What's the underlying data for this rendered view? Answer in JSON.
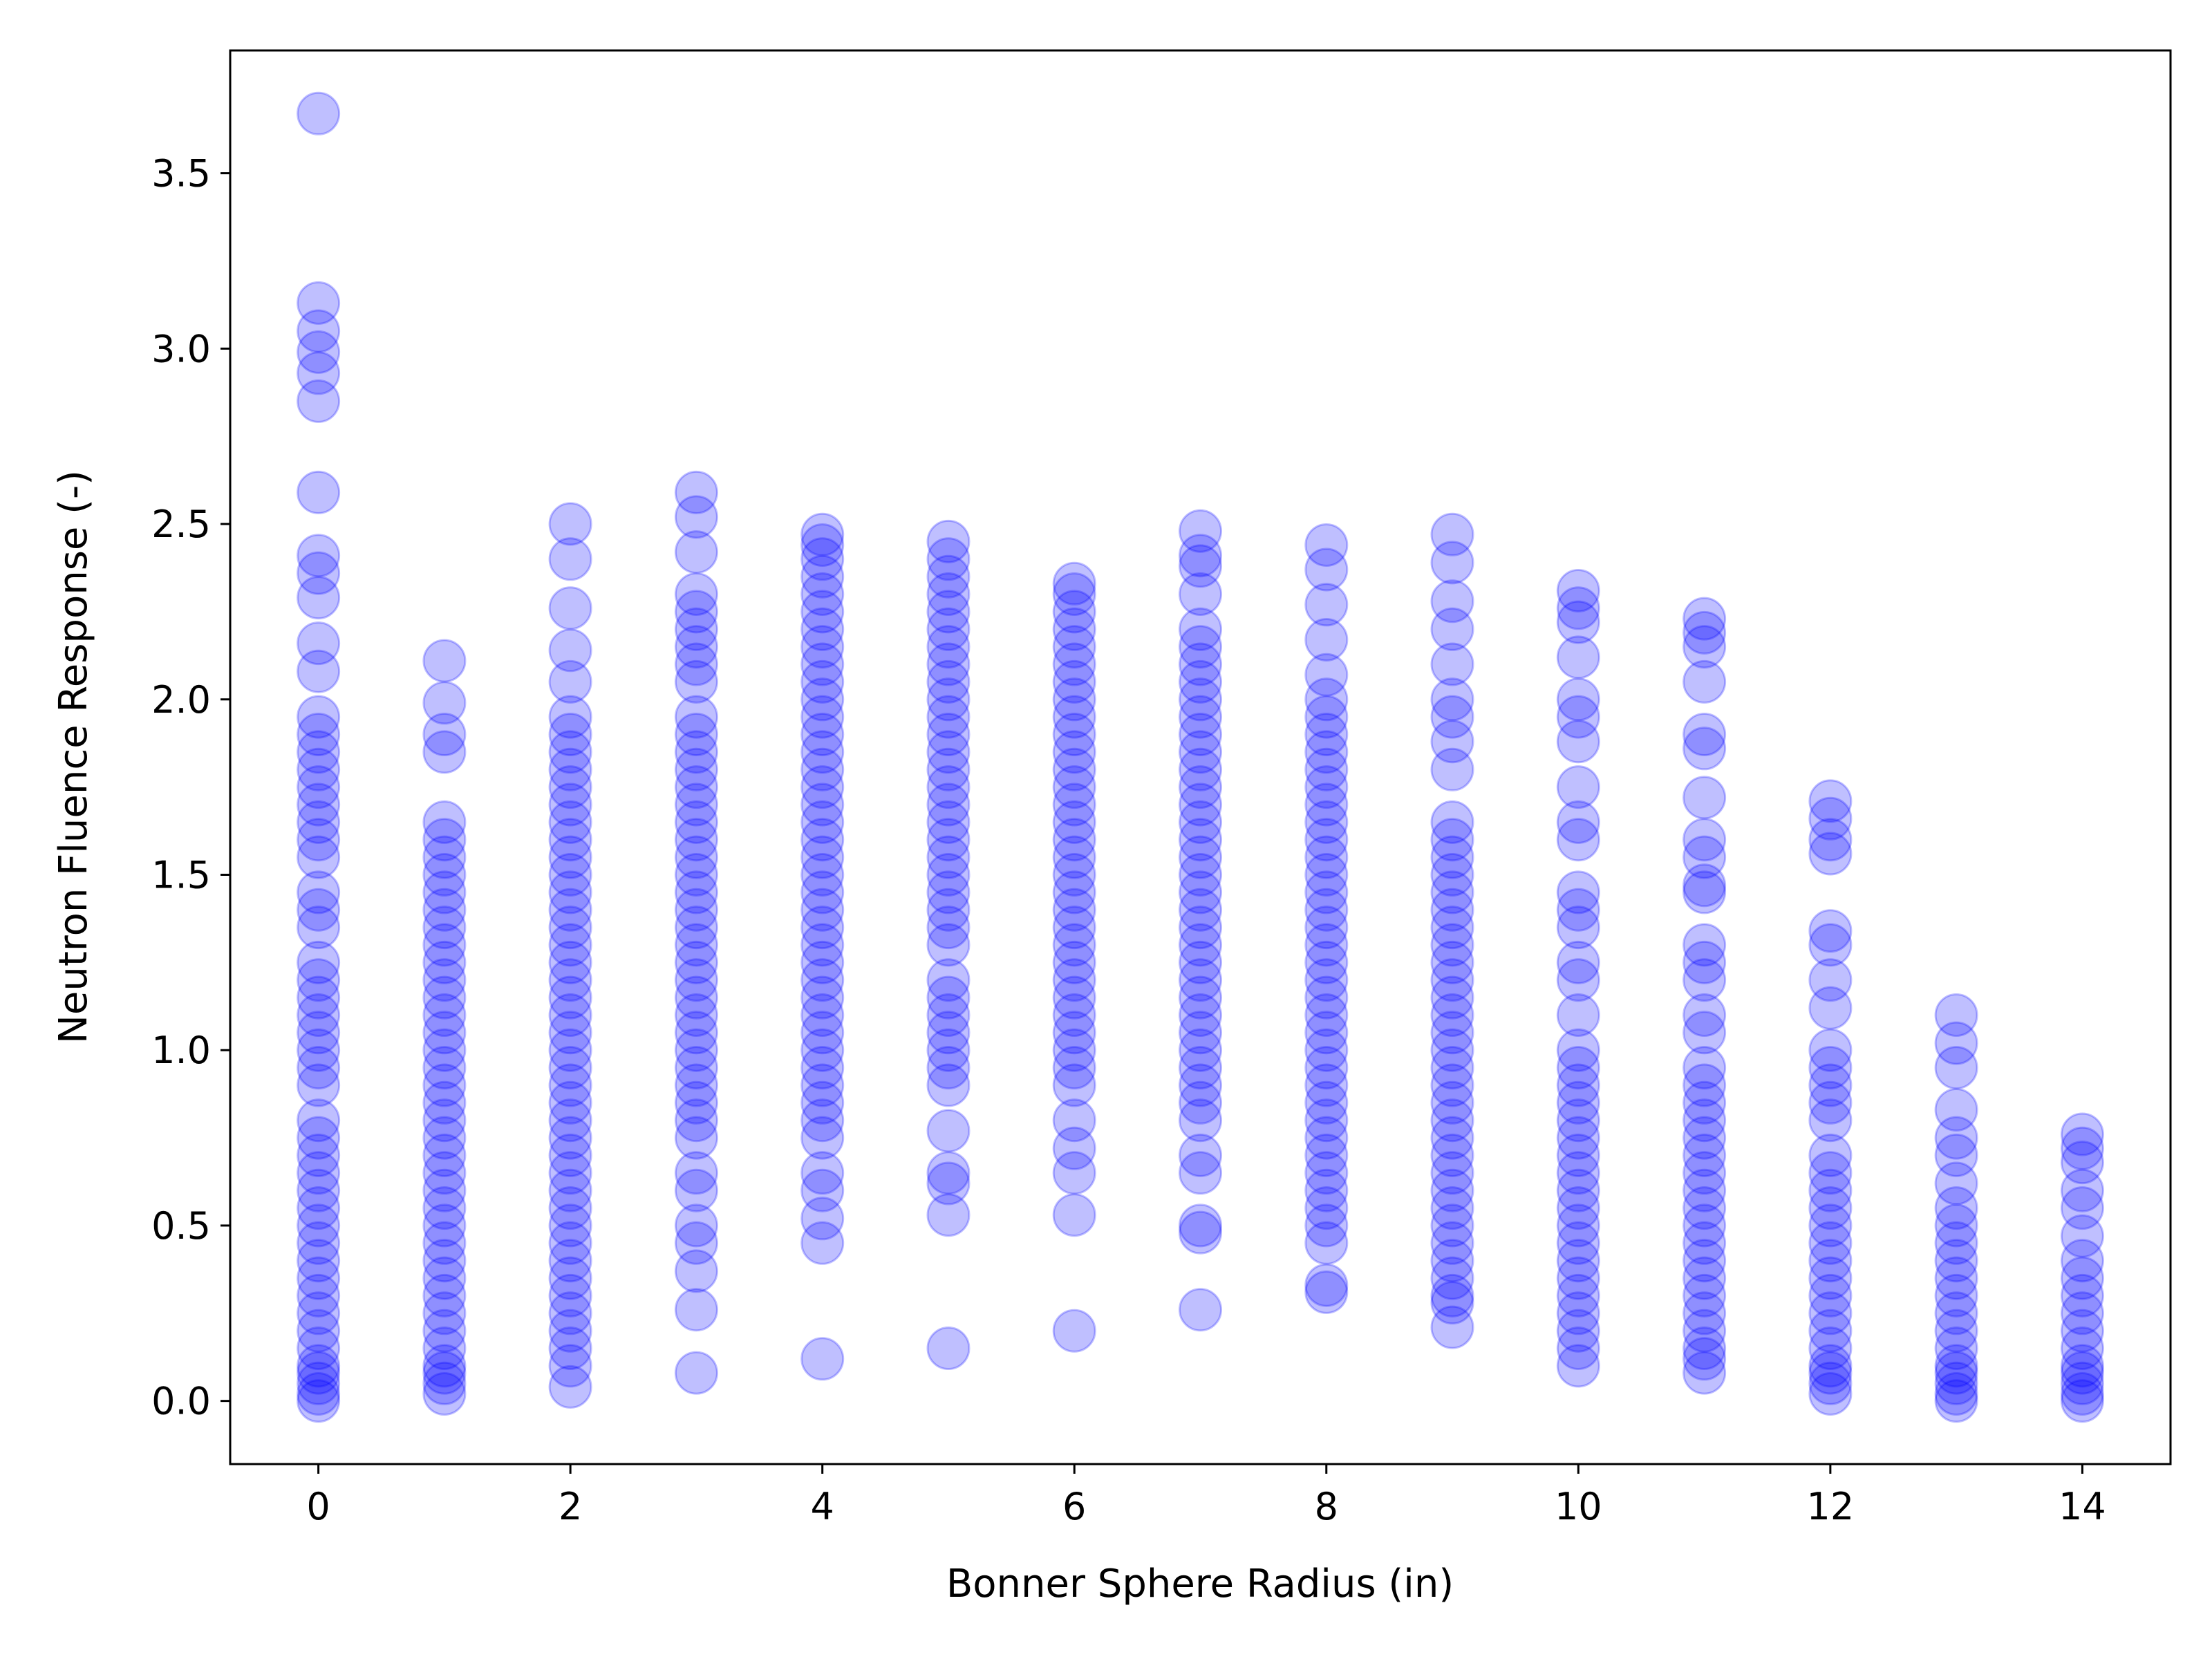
{
  "chart_data": {
    "type": "scatter",
    "title": "",
    "xlabel": "Bonner Sphere Radius (in)",
    "ylabel": "Neutron Fluence Response (-)",
    "xlim": [
      -0.7,
      14.7
    ],
    "ylim": [
      -0.18,
      3.85
    ],
    "xticks": [
      0,
      2,
      4,
      6,
      8,
      10,
      12,
      14
    ],
    "xtick_labels": [
      "0",
      "2",
      "4",
      "6",
      "8",
      "10",
      "12",
      "14"
    ],
    "yticks": [
      0.0,
      0.5,
      1.0,
      1.5,
      2.0,
      2.5,
      3.0,
      3.5
    ],
    "ytick_labels": [
      "0.0",
      "0.5",
      "1.0",
      "1.5",
      "2.0",
      "2.5",
      "3.0",
      "3.5"
    ],
    "grid": false,
    "legend": "none",
    "marker_color": "#0000ff",
    "marker_alpha": 0.25,
    "series": [
      {
        "points_by_radius": [
          {
            "x": 0,
            "y": [
              0.0,
              0.02,
              0.05,
              0.08,
              0.1,
              0.15,
              0.2,
              0.25,
              0.3,
              0.35,
              0.4,
              0.45,
              0.5,
              0.55,
              0.6,
              0.65,
              0.7,
              0.75,
              0.8,
              0.9,
              0.95,
              1.0,
              1.05,
              1.1,
              1.15,
              1.2,
              1.25,
              1.35,
              1.4,
              1.45,
              1.55,
              1.6,
              1.65,
              1.7,
              1.75,
              1.8,
              1.85,
              1.9,
              1.95,
              2.08,
              2.16,
              2.29,
              2.36,
              2.41,
              2.59,
              2.85,
              2.93,
              2.99,
              3.05,
              3.13,
              3.67
            ]
          },
          {
            "x": 1,
            "y": [
              0.02,
              0.05,
              0.08,
              0.1,
              0.15,
              0.2,
              0.25,
              0.3,
              0.35,
              0.4,
              0.45,
              0.5,
              0.55,
              0.6,
              0.65,
              0.7,
              0.75,
              0.8,
              0.85,
              0.9,
              0.95,
              1.0,
              1.05,
              1.1,
              1.15,
              1.2,
              1.25,
              1.3,
              1.35,
              1.4,
              1.45,
              1.5,
              1.55,
              1.6,
              1.65,
              1.85,
              1.9,
              1.99,
              2.11
            ]
          },
          {
            "x": 2,
            "y": [
              0.04,
              0.1,
              0.15,
              0.2,
              0.25,
              0.3,
              0.35,
              0.4,
              0.45,
              0.5,
              0.55,
              0.6,
              0.65,
              0.7,
              0.75,
              0.8,
              0.85,
              0.9,
              0.95,
              1.0,
              1.05,
              1.1,
              1.15,
              1.2,
              1.25,
              1.3,
              1.35,
              1.4,
              1.45,
              1.5,
              1.55,
              1.6,
              1.65,
              1.7,
              1.75,
              1.8,
              1.85,
              1.9,
              1.95,
              2.05,
              2.14,
              2.26,
              2.4,
              2.5
            ]
          },
          {
            "x": 3,
            "y": [
              0.08,
              0.26,
              0.37,
              0.45,
              0.5,
              0.6,
              0.65,
              0.75,
              0.8,
              0.85,
              0.9,
              0.95,
              1.0,
              1.05,
              1.1,
              1.15,
              1.2,
              1.25,
              1.3,
              1.35,
              1.4,
              1.45,
              1.5,
              1.55,
              1.6,
              1.65,
              1.7,
              1.75,
              1.8,
              1.85,
              1.9,
              1.95,
              2.05,
              2.1,
              2.15,
              2.2,
              2.25,
              2.3,
              2.42,
              2.52,
              2.59
            ]
          },
          {
            "x": 4,
            "y": [
              0.12,
              0.45,
              0.52,
              0.6,
              0.65,
              0.75,
              0.8,
              0.85,
              0.9,
              0.95,
              1.0,
              1.05,
              1.1,
              1.15,
              1.2,
              1.25,
              1.3,
              1.35,
              1.4,
              1.45,
              1.5,
              1.55,
              1.6,
              1.65,
              1.7,
              1.75,
              1.8,
              1.85,
              1.9,
              1.95,
              2.0,
              2.05,
              2.1,
              2.15,
              2.2,
              2.25,
              2.3,
              2.35,
              2.4,
              2.44,
              2.47
            ]
          },
          {
            "x": 5,
            "y": [
              0.15,
              0.53,
              0.62,
              0.65,
              0.77,
              0.9,
              0.95,
              1.0,
              1.05,
              1.1,
              1.15,
              1.2,
              1.3,
              1.35,
              1.4,
              1.45,
              1.5,
              1.55,
              1.6,
              1.65,
              1.7,
              1.75,
              1.8,
              1.85,
              1.9,
              1.95,
              2.0,
              2.05,
              2.1,
              2.15,
              2.2,
              2.25,
              2.3,
              2.35,
              2.4,
              2.45
            ]
          },
          {
            "x": 6,
            "y": [
              0.2,
              0.53,
              0.65,
              0.72,
              0.8,
              0.9,
              0.95,
              1.0,
              1.05,
              1.1,
              1.15,
              1.2,
              1.25,
              1.3,
              1.35,
              1.4,
              1.45,
              1.5,
              1.55,
              1.6,
              1.65,
              1.7,
              1.75,
              1.8,
              1.85,
              1.9,
              1.95,
              2.0,
              2.05,
              2.1,
              2.15,
              2.2,
              2.25,
              2.3,
              2.33
            ]
          },
          {
            "x": 7,
            "y": [
              0.26,
              0.48,
              0.5,
              0.65,
              0.7,
              0.8,
              0.85,
              0.9,
              0.95,
              1.0,
              1.05,
              1.1,
              1.15,
              1.2,
              1.25,
              1.3,
              1.35,
              1.4,
              1.45,
              1.5,
              1.55,
              1.6,
              1.65,
              1.7,
              1.75,
              1.8,
              1.85,
              1.9,
              1.95,
              2.0,
              2.05,
              2.1,
              2.15,
              2.2,
              2.3,
              2.38,
              2.41,
              2.48
            ]
          },
          {
            "x": 8,
            "y": [
              0.31,
              0.33,
              0.45,
              0.5,
              0.55,
              0.6,
              0.65,
              0.7,
              0.75,
              0.8,
              0.85,
              0.9,
              0.95,
              1.0,
              1.05,
              1.1,
              1.15,
              1.2,
              1.25,
              1.3,
              1.35,
              1.4,
              1.45,
              1.5,
              1.55,
              1.6,
              1.65,
              1.7,
              1.75,
              1.8,
              1.85,
              1.9,
              1.95,
              2.0,
              2.07,
              2.17,
              2.27,
              2.37,
              2.44
            ]
          },
          {
            "x": 9,
            "y": [
              0.21,
              0.28,
              0.3,
              0.35,
              0.4,
              0.45,
              0.5,
              0.55,
              0.6,
              0.65,
              0.7,
              0.75,
              0.8,
              0.85,
              0.9,
              0.95,
              1.0,
              1.05,
              1.1,
              1.15,
              1.2,
              1.25,
              1.3,
              1.35,
              1.4,
              1.45,
              1.5,
              1.55,
              1.6,
              1.65,
              1.8,
              1.88,
              1.95,
              2.0,
              2.1,
              2.2,
              2.28,
              2.39,
              2.47
            ]
          },
          {
            "x": 10,
            "y": [
              0.1,
              0.15,
              0.2,
              0.25,
              0.3,
              0.35,
              0.4,
              0.45,
              0.5,
              0.55,
              0.6,
              0.65,
              0.7,
              0.75,
              0.8,
              0.85,
              0.9,
              0.95,
              1.0,
              1.1,
              1.2,
              1.25,
              1.35,
              1.4,
              1.45,
              1.6,
              1.65,
              1.75,
              1.88,
              1.95,
              2.0,
              2.12,
              2.22,
              2.26,
              2.31
            ]
          },
          {
            "x": 11,
            "y": [
              0.08,
              0.12,
              0.15,
              0.2,
              0.25,
              0.3,
              0.35,
              0.4,
              0.45,
              0.5,
              0.55,
              0.6,
              0.65,
              0.7,
              0.75,
              0.8,
              0.85,
              0.9,
              0.95,
              1.05,
              1.1,
              1.2,
              1.25,
              1.3,
              1.45,
              1.47,
              1.55,
              1.6,
              1.72,
              1.86,
              1.9,
              2.05,
              2.15,
              2.19,
              2.23
            ]
          },
          {
            "x": 12,
            "y": [
              0.02,
              0.05,
              0.08,
              0.1,
              0.15,
              0.2,
              0.25,
              0.3,
              0.35,
              0.4,
              0.45,
              0.5,
              0.55,
              0.6,
              0.65,
              0.7,
              0.8,
              0.85,
              0.9,
              0.95,
              1.0,
              1.12,
              1.2,
              1.3,
              1.34,
              1.56,
              1.6,
              1.66,
              1.71
            ]
          },
          {
            "x": 13,
            "y": [
              0.0,
              0.02,
              0.05,
              0.08,
              0.1,
              0.15,
              0.2,
              0.25,
              0.3,
              0.35,
              0.4,
              0.45,
              0.5,
              0.55,
              0.62,
              0.7,
              0.75,
              0.83,
              0.95,
              1.02,
              1.1
            ]
          },
          {
            "x": 14,
            "y": [
              0.0,
              0.02,
              0.05,
              0.08,
              0.1,
              0.15,
              0.2,
              0.25,
              0.3,
              0.35,
              0.4,
              0.47,
              0.55,
              0.6,
              0.68,
              0.72,
              0.76
            ]
          }
        ]
      }
    ]
  }
}
